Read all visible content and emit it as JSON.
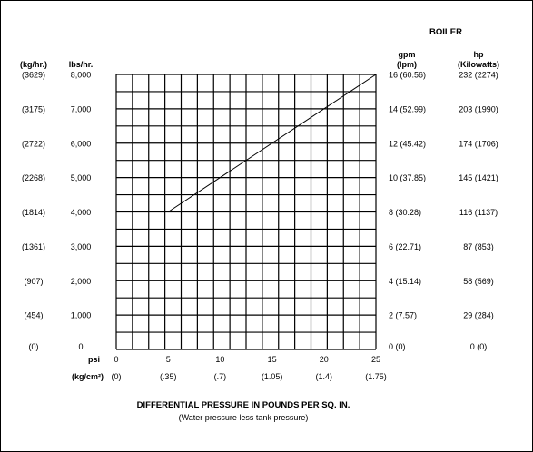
{
  "chart_data": {
    "type": "line",
    "title": "",
    "xlabel": "DIFFERENTIAL PRESSURE IN POUNDS PER SQ. IN.",
    "xlabel_sub": "(Water pressure less tank pressure)",
    "x_unit": "psi",
    "x_unit_alt": "(kg/cm²)",
    "xlim": [
      0,
      25
    ],
    "x_ticks": [
      "0",
      "5",
      "10",
      "15",
      "20",
      "25"
    ],
    "x_ticks_alt": [
      "(0)",
      "(.35)",
      "(.7)",
      "(1.05)",
      "(1.4)",
      "(1.75)"
    ],
    "y_left_header": "lbs/hr.",
    "y_left_alt_header": "(kg/hr.)",
    "ylim": [
      0,
      8000
    ],
    "y_ticks": [
      "0",
      "1,000",
      "2,000",
      "3,000",
      "4,000",
      "5,000",
      "6,000",
      "7,000",
      "8,000"
    ],
    "y_ticks_alt": [
      "(0)",
      "(454)",
      "(907)",
      "(1361)",
      "(1814)",
      "(2268)",
      "(2722)",
      "(3175)",
      "(3629)"
    ],
    "right_title": "BOILER",
    "right_col1_header": [
      "gpm",
      "(lpm)"
    ],
    "right_col1_ticks": [
      "0 (0)",
      "2 (7.57)",
      "4 (15.14)",
      "6 (22.71)",
      "8 (30.28)",
      "10 (37.85)",
      "12 (45.42)",
      "14 (52.99)",
      "16 (60.56)"
    ],
    "right_col2_header": [
      "hp",
      "(Kilowatts)"
    ],
    "right_col2_ticks": [
      "0 (0)",
      "29 (284)",
      "58 (569)",
      "87 (853)",
      "116 (1137)",
      "145 (1421)",
      "174 (1706)",
      "203 (1990)",
      "232 (2274)"
    ],
    "grid": true,
    "series": [
      {
        "values": [
          {
            "x": 5,
            "y": 4000
          },
          {
            "x": 25,
            "y": 8000
          }
        ]
      }
    ]
  }
}
